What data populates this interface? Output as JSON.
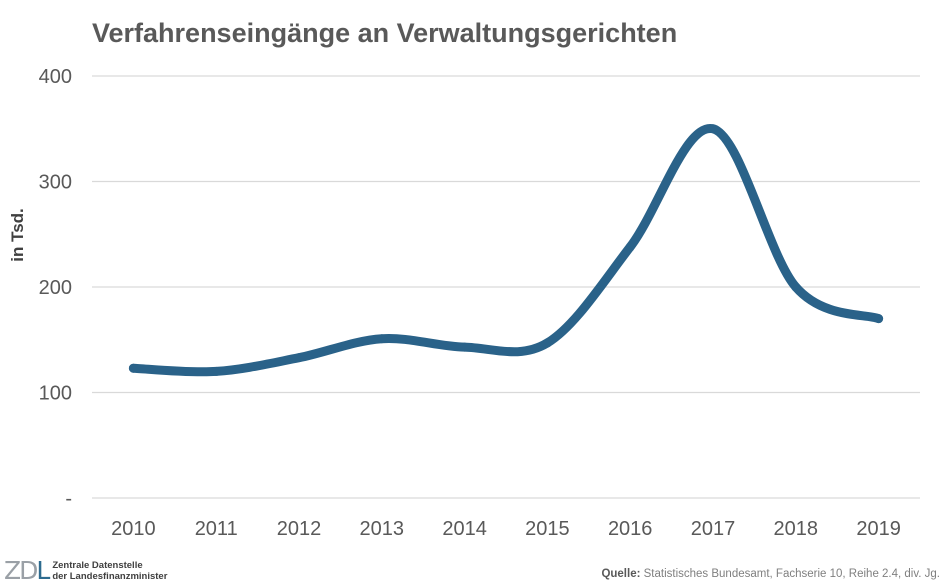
{
  "chart_data": {
    "type": "line",
    "title": "Verfahrenseingänge an Verwaltungsgerichten",
    "ylabel": "in Tsd.",
    "xlabel": "",
    "categories": [
      "2010",
      "2011",
      "2012",
      "2013",
      "2014",
      "2015",
      "2016",
      "2017",
      "2018",
      "2019"
    ],
    "series": [
      {
        "values": [
          123,
          120,
          133,
          151,
          143,
          147,
          238,
          350,
          200,
          170
        ]
      }
    ],
    "ylim": [
      0,
      400
    ],
    "y_ticks": [
      400,
      300,
      200,
      100,
      0
    ],
    "y_tick_labels": [
      "400",
      "300",
      "200",
      "100",
      "-"
    ],
    "grid": true,
    "smooth": true,
    "legend": "none",
    "line_color": "#2a6289",
    "grid_color": "#d9d9d9",
    "text_color": "#595959"
  },
  "footer": {
    "logo_mark": "ZDL",
    "logo_line1": "Zentrale Datenstelle",
    "logo_line2": "der Landesfinanzminister",
    "source_label": "Quelle:",
    "source_text": " Statistisches Bundesamt, Fachserie 10, Reihe 2.4, div. Jg."
  }
}
